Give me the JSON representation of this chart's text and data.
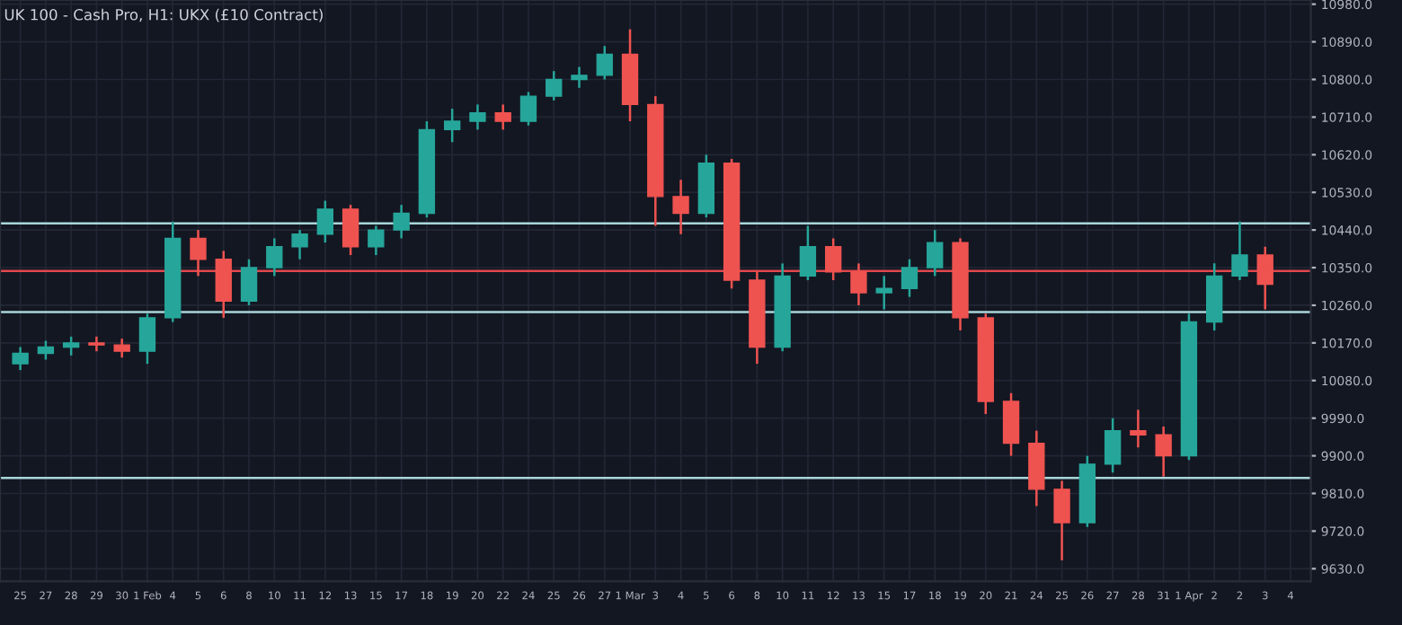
{
  "chart_data": {
    "type": "candlestick",
    "title": "UK 100 - Cash Pro, H1: UKX (£10 Contract)",
    "categories": [
      "25",
      "27",
      "28",
      "29",
      "30",
      "1 Feb",
      "4",
      "5",
      "6",
      "8",
      "10",
      "11",
      "12",
      "13",
      "15",
      "17",
      "18",
      "19",
      "20",
      "22",
      "24",
      "25",
      "26",
      "27",
      "1 Mar",
      "3",
      "4",
      "5",
      "6",
      "8",
      "10",
      "11",
      "12",
      "13",
      "15",
      "17",
      "18",
      "19",
      "20",
      "21",
      "24",
      "25",
      "26",
      "27",
      "28",
      "31",
      "1 Apr",
      "2",
      "2",
      "3",
      "4"
    ],
    "ohlc": [
      [
        10120,
        10160,
        10105,
        10145
      ],
      [
        10145,
        10175,
        10130,
        10160
      ],
      [
        10160,
        10185,
        10140,
        10170
      ],
      [
        10170,
        10185,
        10150,
        10165
      ],
      [
        10165,
        10180,
        10135,
        10150
      ],
      [
        10150,
        10240,
        10120,
        10230
      ],
      [
        10230,
        10460,
        10220,
        10420
      ],
      [
        10420,
        10440,
        10330,
        10370
      ],
      [
        10370,
        10390,
        10230,
        10270
      ],
      [
        10270,
        10370,
        10260,
        10350
      ],
      [
        10350,
        10420,
        10330,
        10400
      ],
      [
        10400,
        10440,
        10370,
        10430
      ],
      [
        10430,
        10510,
        10410,
        10490
      ],
      [
        10490,
        10500,
        10380,
        10400
      ],
      [
        10400,
        10450,
        10380,
        10440
      ],
      [
        10440,
        10500,
        10420,
        10480
      ],
      [
        10480,
        10700,
        10470,
        10680
      ],
      [
        10680,
        10730,
        10650,
        10700
      ],
      [
        10700,
        10740,
        10680,
        10720
      ],
      [
        10720,
        10740,
        10680,
        10700
      ],
      [
        10700,
        10770,
        10690,
        10760
      ],
      [
        10760,
        10820,
        10750,
        10800
      ],
      [
        10800,
        10830,
        10780,
        10810
      ],
      [
        10810,
        10880,
        10800,
        10860
      ],
      [
        10860,
        10920,
        10700,
        10740
      ],
      [
        10740,
        10760,
        10450,
        10520
      ],
      [
        10520,
        10560,
        10430,
        10480
      ],
      [
        10480,
        10620,
        10470,
        10600
      ],
      [
        10600,
        10610,
        10300,
        10320
      ],
      [
        10320,
        10340,
        10120,
        10160
      ],
      [
        10160,
        10360,
        10150,
        10330
      ],
      [
        10330,
        10450,
        10320,
        10400
      ],
      [
        10400,
        10420,
        10320,
        10340
      ],
      [
        10340,
        10360,
        10260,
        10290
      ],
      [
        10290,
        10330,
        10250,
        10300
      ],
      [
        10300,
        10370,
        10280,
        10350
      ],
      [
        10350,
        10440,
        10330,
        10410
      ],
      [
        10410,
        10420,
        10200,
        10230
      ],
      [
        10230,
        10240,
        10000,
        10030
      ],
      [
        10030,
        10050,
        9900,
        9930
      ],
      [
        9930,
        9960,
        9780,
        9820
      ],
      [
        9820,
        9840,
        9650,
        9740
      ],
      [
        9740,
        9900,
        9730,
        9880
      ],
      [
        9880,
        9990,
        9860,
        9960
      ],
      [
        9960,
        10010,
        9920,
        9950
      ],
      [
        9950,
        9970,
        9850,
        9900
      ],
      [
        9900,
        10240,
        9890,
        10220
      ],
      [
        10220,
        10360,
        10200,
        10330
      ],
      [
        10330,
        10460,
        10320,
        10380
      ],
      [
        10380,
        10400,
        10250,
        10310
      ],
      null
    ],
    "colors": [
      "#26a69a",
      "#26a69a",
      "#26a69a",
      "#ef5350",
      "#ef5350",
      "#26a69a",
      "#26a69a",
      "#ef5350",
      "#ef5350",
      "#26a69a",
      "#26a69a",
      "#26a69a",
      "#26a69a",
      "#ef5350",
      "#26a69a",
      "#26a69a",
      "#26a69a",
      "#26a69a",
      "#26a69a",
      "#ef5350",
      "#26a69a",
      "#26a69a",
      "#26a69a",
      "#26a69a",
      "#ef5350",
      "#ef5350",
      "#ef5350",
      "#26a69a",
      "#ef5350",
      "#ef5350",
      "#26a69a",
      "#26a69a",
      "#ef5350",
      "#ef5350",
      "#26a69a",
      "#26a69a",
      "#26a69a",
      "#ef5350",
      "#ef5350",
      "#ef5350",
      "#ef5350",
      "#ef5350",
      "#26a69a",
      "#26a69a",
      "#ef5350",
      "#ef5350",
      "#26a69a",
      "#26a69a",
      "#26a69a",
      "#ef5350",
      null
    ],
    "ylim": [
      9600,
      10990
    ],
    "yticks": [
      {
        "value": 9630,
        "label": "9630.0"
      },
      {
        "value": 9720,
        "label": "9720.0"
      },
      {
        "value": 9810,
        "label": "9810.0"
      },
      {
        "value": 9900,
        "label": "9900.0"
      },
      {
        "value": 9990,
        "label": "9990.0"
      },
      {
        "value": 10080,
        "label": "10080.0"
      },
      {
        "value": 10170,
        "label": "10170.0"
      },
      {
        "value": 10260,
        "label": "10260.0"
      },
      {
        "value": 10350,
        "label": "10350.0"
      },
      {
        "value": 10440,
        "label": "10440.0"
      },
      {
        "value": 10530,
        "label": "10530.0"
      },
      {
        "value": 10620,
        "label": "10620.0"
      },
      {
        "value": 10710,
        "label": "10710.0"
      },
      {
        "value": 10800,
        "label": "10800.0"
      },
      {
        "value": 10890,
        "label": "10890.0"
      },
      {
        "value": 10980,
        "label": "10980.0"
      }
    ],
    "ref_lines": [
      {
        "axis": "y",
        "value": 10456,
        "color": "#a9d6da"
      },
      {
        "axis": "y",
        "value": 10342,
        "color": "#e0474c"
      },
      {
        "axis": "y",
        "value": 10244,
        "color": "#a9d6da"
      },
      {
        "axis": "y",
        "value": 9847,
        "color": "#a9d6da"
      }
    ],
    "grid": true
  }
}
